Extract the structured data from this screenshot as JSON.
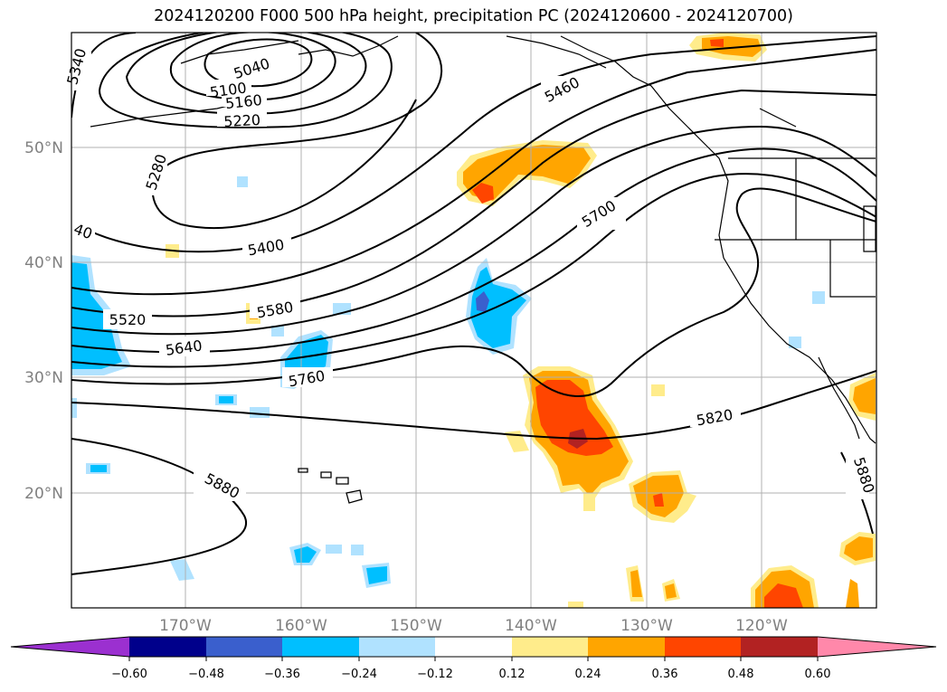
{
  "title": "2024120200 F000 500 hPa height, precipitation PC (2024120600 - 2024120700)",
  "lat_labels": [
    "50°N",
    "40°N",
    "30°N",
    "20°N"
  ],
  "lon_labels": [
    "170°W",
    "160°W",
    "150°W",
    "140°W",
    "130°W",
    "120°W"
  ],
  "contour_labels": [
    "5340",
    "5040",
    "5100",
    "5160",
    "5220",
    "5280",
    "5460",
    "5400",
    "40",
    "5520",
    "5580",
    "5700",
    "5640",
    "5760",
    "5820",
    "5880",
    "5880"
  ],
  "colorbar": {
    "ticks": [
      "−0.60",
      "−0.48",
      "−0.36",
      "−0.24",
      "−0.12",
      "0.12",
      "0.24",
      "0.36",
      "0.48",
      "0.60"
    ],
    "colors": [
      "#9b30d0",
      "#00008b",
      "#3a5fcd",
      "#00bfff",
      "#b0e2ff",
      "#ffffff",
      "#ffec8b",
      "#ffa500",
      "#ff4500",
      "#b22222",
      "#ff88aa"
    ]
  },
  "precip_colors": {
    "pos1": "#ffec8b",
    "pos2": "#ffa500",
    "pos3": "#ff4500",
    "pos4": "#b22222",
    "neg1": "#b0e2ff",
    "neg2": "#00bfff",
    "neg3": "#3a5fcd"
  }
}
